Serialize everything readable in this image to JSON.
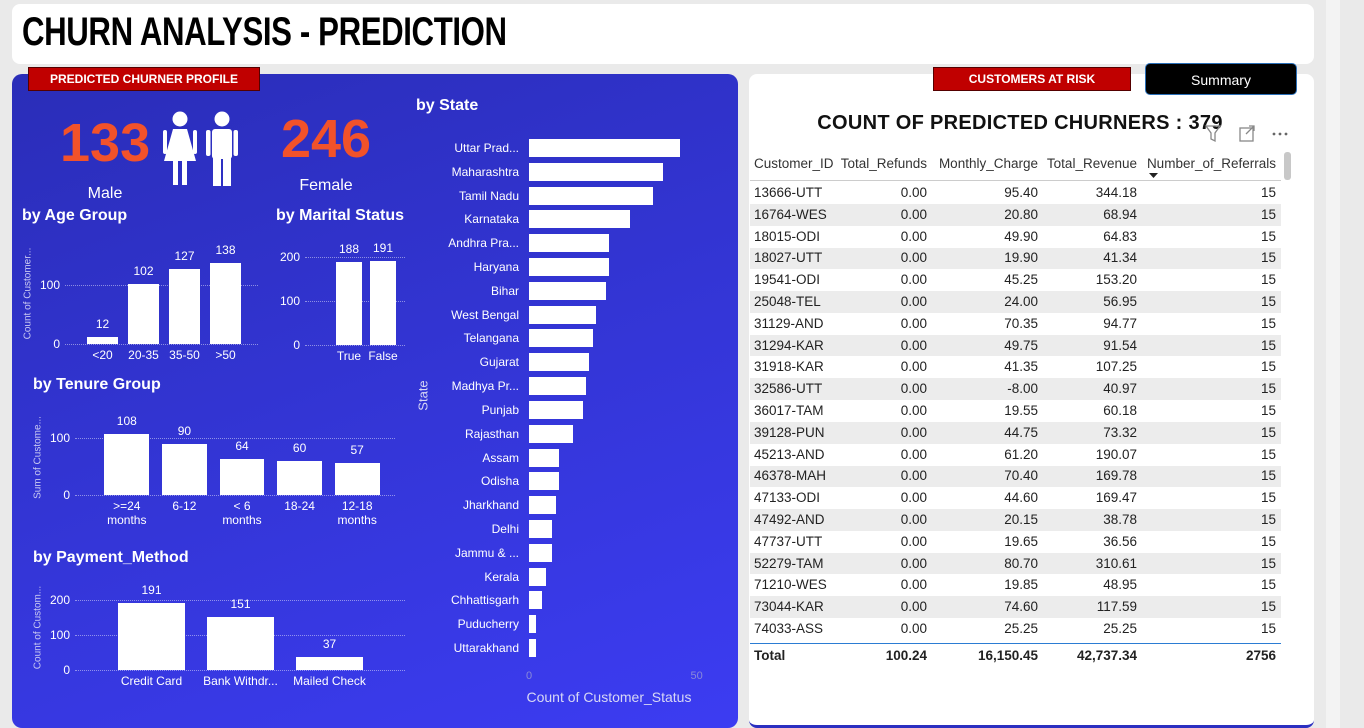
{
  "header": {
    "title": "CHURN ANALYSIS - PREDICTION"
  },
  "profile": {
    "label": "PREDICTED CHURNER PROFILE",
    "male_count": 133,
    "male_label": "Male",
    "female_count": 246,
    "female_label": "Female"
  },
  "chart_data": [
    {
      "type": "bar",
      "title": "by Age Group",
      "y_label": "Count of Customer...",
      "categories": [
        "<20",
        "20-35",
        "35-50",
        ">50"
      ],
      "values": [
        12,
        102,
        127,
        138
      ],
      "color": "#ffffff",
      "ylim": [
        0,
        170
      ],
      "yticks": [
        0,
        100
      ],
      "grid": true
    },
    {
      "type": "bar",
      "title": "by Marital Status",
      "categories": [
        "True",
        "False"
      ],
      "values": [
        188,
        191
      ],
      "color": "#ffffff",
      "ylim": [
        0,
        240
      ],
      "yticks": [
        0,
        100,
        200
      ],
      "grid": true
    },
    {
      "type": "bar",
      "title": "by Tenure Group",
      "y_label": "Sum of Custome...",
      "categories": [
        ">=24 months",
        "6-12",
        "< 6 months",
        "18-24",
        "12-18 months"
      ],
      "values": [
        108,
        90,
        64,
        60,
        57
      ],
      "color": "#ffffff",
      "ylim": [
        0,
        130
      ],
      "yticks": [
        0,
        100
      ],
      "grid": true
    },
    {
      "type": "bar",
      "title": "by Payment_Method",
      "y_label": "Count of Custom...",
      "categories": [
        "Credit Card",
        "Bank Withdr...",
        "Mailed Check"
      ],
      "values": [
        191,
        151,
        37
      ],
      "color": "#ffffff",
      "ylim": [
        0,
        240
      ],
      "yticks": [
        0,
        100,
        200
      ],
      "grid": true
    },
    {
      "type": "hbar",
      "title": "by State",
      "y_label": "State",
      "x_label": "Count of Customer_Status",
      "categories": [
        "Uttar Prad...",
        "Maharashtra",
        "Tamil Nadu",
        "Karnataka",
        "Andhra Pra...",
        "Haryana",
        "Bihar",
        "West Bengal",
        "Telangana",
        "Gujarat",
        "Madhya Pr...",
        "Punjab",
        "Rajasthan",
        "Assam",
        "Odisha",
        "Jharkhand",
        "Delhi",
        "Jammu & ...",
        "Kerala",
        "Chhattisgarh",
        "Puducherry",
        "Uttarakhand"
      ],
      "values": [
        45,
        40,
        37,
        30,
        24,
        24,
        23,
        20,
        19,
        18,
        17,
        16,
        13,
        9,
        9,
        8,
        7,
        7,
        5,
        4,
        2,
        2
      ],
      "color": "#ffffff",
      "xlim": [
        0,
        51
      ],
      "xticks": [
        0,
        50
      ],
      "grid": false
    }
  ],
  "risk": {
    "label": "CUSTOMERS AT RISK",
    "button": "Summary",
    "title": "COUNT OF PREDICTED CHURNERS : 379",
    "columns": [
      "Customer_ID",
      "Total_Refunds",
      "Monthly_Charge",
      "Total_Revenue",
      "Number_of_Referrals"
    ],
    "rows": [
      [
        "13666-UTT",
        "0.00",
        "95.40",
        "344.18",
        "15"
      ],
      [
        "16764-WES",
        "0.00",
        "20.80",
        "68.94",
        "15"
      ],
      [
        "18015-ODI",
        "0.00",
        "49.90",
        "64.83",
        "15"
      ],
      [
        "18027-UTT",
        "0.00",
        "19.90",
        "41.34",
        "15"
      ],
      [
        "19541-ODI",
        "0.00",
        "45.25",
        "153.20",
        "15"
      ],
      [
        "25048-TEL",
        "0.00",
        "24.00",
        "56.95",
        "15"
      ],
      [
        "31129-AND",
        "0.00",
        "70.35",
        "94.77",
        "15"
      ],
      [
        "31294-KAR",
        "0.00",
        "49.75",
        "91.54",
        "15"
      ],
      [
        "31918-KAR",
        "0.00",
        "41.35",
        "107.25",
        "15"
      ],
      [
        "32586-UTT",
        "0.00",
        "-8.00",
        "40.97",
        "15"
      ],
      [
        "36017-TAM",
        "0.00",
        "19.55",
        "60.18",
        "15"
      ],
      [
        "39128-PUN",
        "0.00",
        "44.75",
        "73.32",
        "15"
      ],
      [
        "45213-AND",
        "0.00",
        "61.20",
        "190.07",
        "15"
      ],
      [
        "46378-MAH",
        "0.00",
        "70.40",
        "169.78",
        "15"
      ],
      [
        "47133-ODI",
        "0.00",
        "44.60",
        "169.47",
        "15"
      ],
      [
        "47492-AND",
        "0.00",
        "20.15",
        "38.78",
        "15"
      ],
      [
        "47737-UTT",
        "0.00",
        "19.65",
        "36.56",
        "15"
      ],
      [
        "52279-TAM",
        "0.00",
        "80.70",
        "310.61",
        "15"
      ],
      [
        "71210-WES",
        "0.00",
        "19.85",
        "48.95",
        "15"
      ],
      [
        "73044-KAR",
        "0.00",
        "74.60",
        "117.59",
        "15"
      ],
      [
        "74033-ASS",
        "0.00",
        "25.25",
        "25.25",
        "15"
      ]
    ],
    "total": [
      "Total",
      "100.24",
      "16,150.45",
      "42,737.34",
      "2756"
    ]
  }
}
